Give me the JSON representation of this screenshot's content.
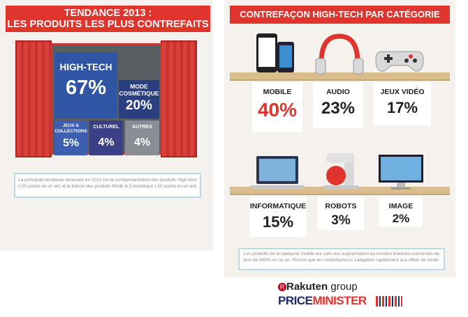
{
  "left_panel": {
    "title_line1": "TENDANCE 2013 :",
    "title_line2": "LES PRODUITS LES PLUS CONTREFAITS",
    "note": "La principale tendance observée en 2013 est la surreprésentation des produits High-tech (+20 points en un an) et la baisse des produits Mode & Cosmétique (-10 points en un an)."
  },
  "right_panel": {
    "title": "CONTREFAÇON HIGH-TECH PAR CATÉGORIE",
    "note": "Les produits de la catégorie mobile ont subi une augmentation du nombre d'articles concernés de plus de 400% en un an. Preuve que les contrefacteurs s'adaptent rapidement aux effets de mode."
  },
  "logos": {
    "rakuten_r": "R",
    "rakuten_name": "Rakuten",
    "rakuten_group": " group",
    "price": "PRICE",
    "minister": "MINISTER"
  },
  "colors": {
    "banner_red": "#e0342e",
    "high_tech_blue": "#2f55a4",
    "accent_red_pct": "#e0342e"
  },
  "chart_data": [
    {
      "type": "treemap",
      "title": "TENDANCE 2013 : LES PRODUITS LES PLUS CONTREFAITS",
      "categories": [
        "HIGH-TECH",
        "MODE COSMÉTIQUE",
        "JEUX & COLLECTIONS",
        "CULTUREL",
        "AUTRES"
      ],
      "values": [
        67,
        20,
        5,
        4,
        4
      ],
      "labels": [
        "67%",
        "20%",
        "5%",
        "4%",
        "4%"
      ],
      "unit": "%"
    },
    {
      "type": "bar",
      "title": "CONTREFAÇON HIGH-TECH PAR CATÉGORIE",
      "categories": [
        "MOBILE",
        "AUDIO",
        "JEUX VIDÉO",
        "INFORMATIQUE",
        "ROBOTS",
        "IMAGE"
      ],
      "values": [
        40,
        23,
        17,
        15,
        3,
        2
      ],
      "labels": [
        "40%",
        "23%",
        "17%",
        "15%",
        "3%",
        "2%"
      ],
      "icons": [
        "phone-icon",
        "headphones-icon",
        "gamepad-icon",
        "laptop-icon",
        "food-robot-icon",
        "tv-icon"
      ],
      "unit": "%"
    }
  ]
}
